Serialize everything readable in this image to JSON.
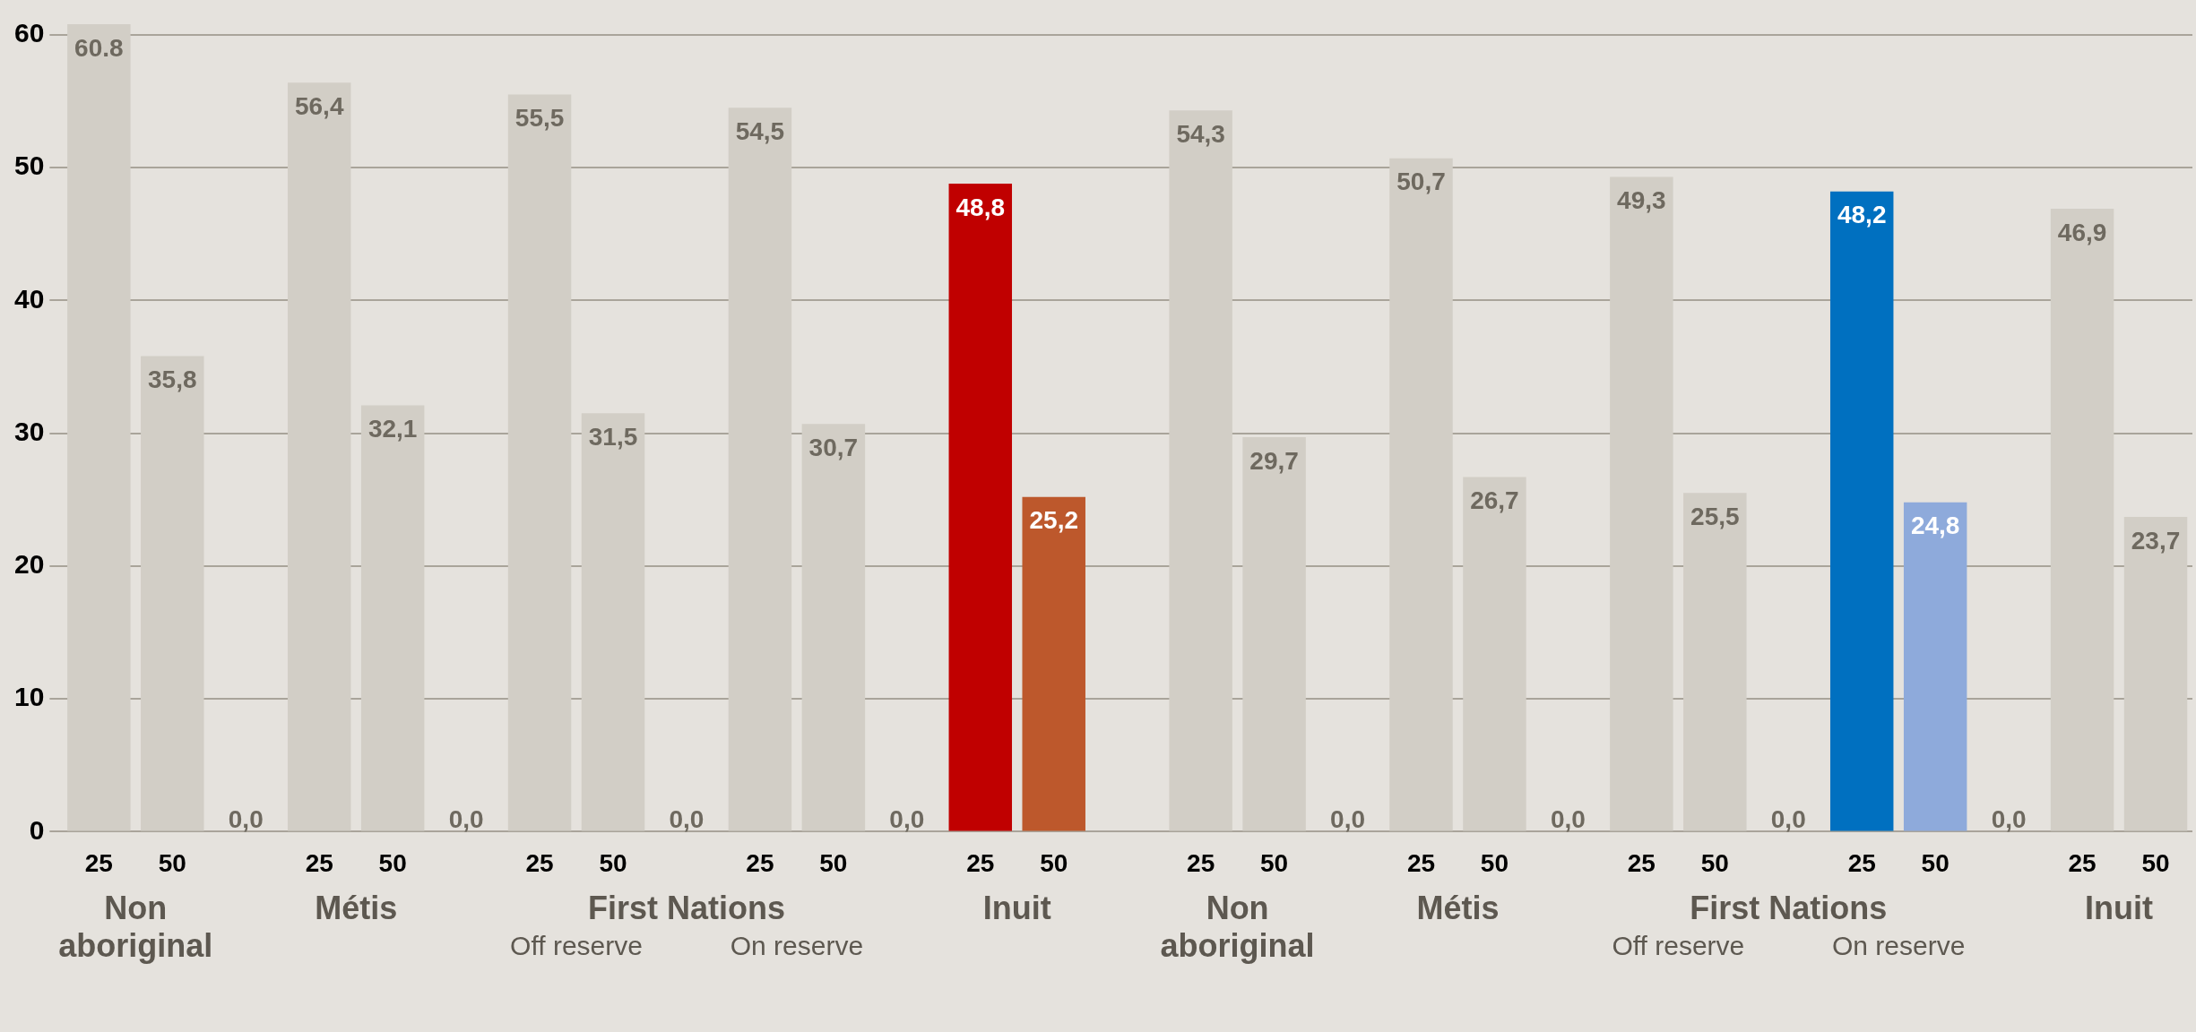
{
  "chart_data": {
    "type": "bar",
    "categories": [
      "25",
      "50",
      null,
      "25",
      "50",
      null,
      "25",
      "50",
      null,
      "25",
      "50",
      null,
      "25",
      "50",
      null,
      "25",
      "50",
      null,
      "25",
      "50",
      null,
      "25",
      "50",
      null,
      "25",
      "50",
      null,
      "25",
      "50"
    ],
    "values": [
      60.8,
      35.8,
      0,
      56.4,
      32.1,
      0,
      55.5,
      31.5,
      0,
      54.5,
      30.7,
      0,
      48.8,
      25.2,
      null,
      54.3,
      29.7,
      0,
      50.7,
      26.7,
      0,
      49.3,
      25.5,
      0,
      48.2,
      24.8,
      0,
      46.9,
      23.7
    ],
    "value_labels": [
      "60.8",
      "35,8",
      "0,0",
      "56,4",
      "32,1",
      "0,0",
      "55,5",
      "31,5",
      "0,0",
      "54,5",
      "30,7",
      "0,0",
      "48,8",
      "25,2",
      null,
      "54,3",
      "29,7",
      "0,0",
      "50,7",
      "26,7",
      "0,0",
      "49,3",
      "25,5",
      "0,0",
      "48,2",
      "24,8",
      "0,0",
      "46,9",
      "23,7"
    ],
    "colors": [
      "#d2cec6",
      "#d2cec6",
      "#d2cec6",
      "#d2cec6",
      "#d2cec6",
      "#d2cec6",
      "#d2cec6",
      "#d2cec6",
      "#d2cec6",
      "#d2cec6",
      "#d2cec6",
      "#d2cec6",
      "#c00000",
      "#bd582c",
      "#d2cec6",
      "#d2cec6",
      "#d2cec6",
      "#d2cec6",
      "#d2cec6",
      "#d2cec6",
      "#d2cec6",
      "#d2cec6",
      "#d2cec6",
      "#d2cec6",
      "#0070c0",
      "#8eaadb",
      "#d2cec6",
      "#d2cec6",
      "#d2cec6"
    ],
    "ylim": [
      0,
      61
    ],
    "yticks": [
      0,
      10,
      20,
      30,
      40,
      50,
      60
    ],
    "grid": "y",
    "legend": false,
    "annotations": [
      "Non aboriginal",
      "Métis",
      "First Nations",
      "Off reserve",
      "On reserve",
      "Inuit",
      "Non aboriginal",
      "Métis",
      "First Nations",
      "Off reserve",
      "On reserve",
      "Inuit"
    ]
  }
}
